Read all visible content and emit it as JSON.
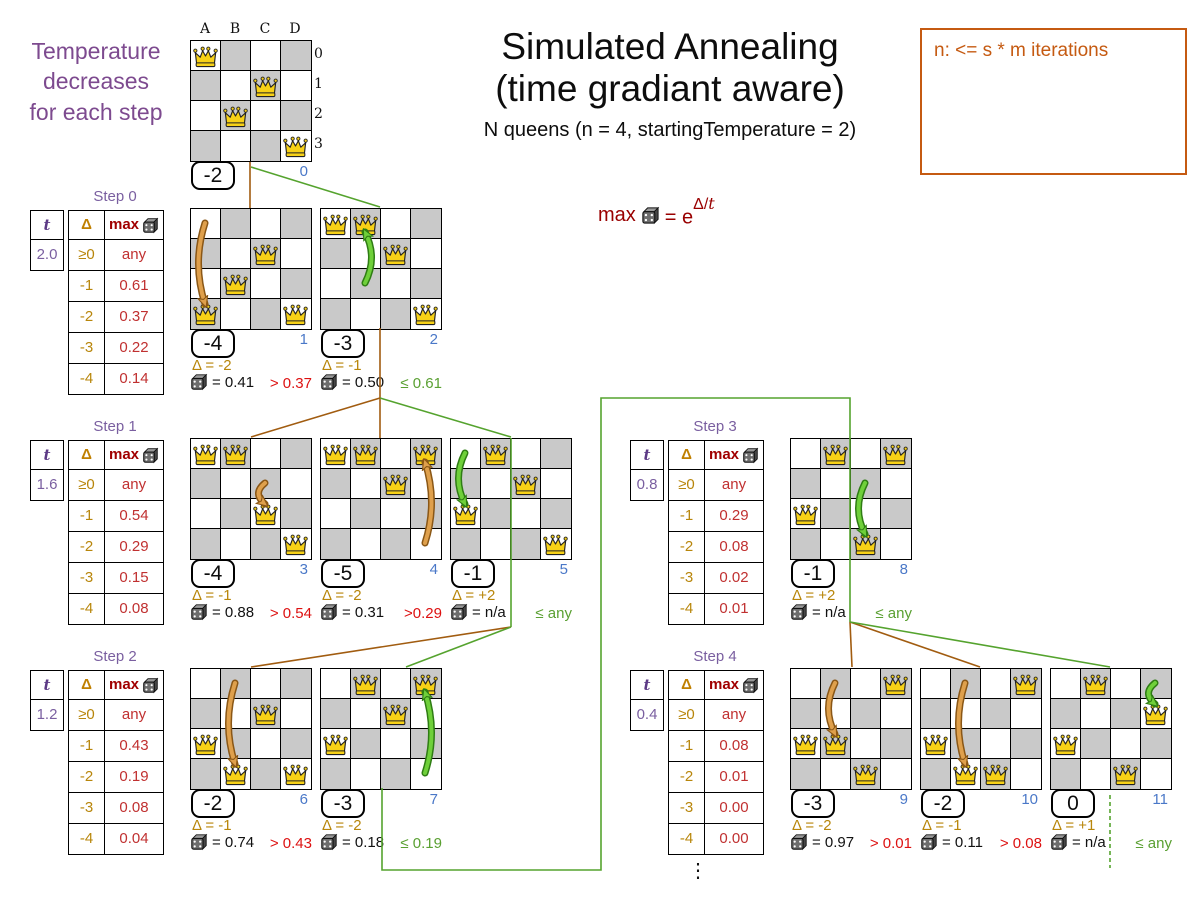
{
  "meta": {
    "title_line1": "Simulated Annealing",
    "title_line2": "(time gradiant aware)",
    "subtitle": "N queens (n = 4, startingTemperature = 2)"
  },
  "temperature_note": {
    "lines": [
      "Temperature",
      "decreases",
      "for each step"
    ]
  },
  "note_box": {
    "text": "n: <= s * m iterations"
  },
  "formula": {
    "prefix": "max",
    "equals": "= e",
    "exponent_delta": "Δ/",
    "exponent_t": "t"
  },
  "board_labels": {
    "columns": [
      "A",
      "B",
      "C",
      "D"
    ],
    "rows": [
      "0",
      "1",
      "2",
      "3"
    ]
  },
  "table_header": {
    "t": "t",
    "delta": "Δ",
    "max": "max"
  },
  "steps": [
    {
      "label": "Step 0",
      "t": "2.0",
      "rows": [
        {
          "delta": "≥0",
          "max": "any"
        },
        {
          "delta": "-1",
          "max": "0.61"
        },
        {
          "delta": "-2",
          "max": "0.37"
        },
        {
          "delta": "-3",
          "max": "0.22"
        },
        {
          "delta": "-4",
          "max": "0.14"
        }
      ]
    },
    {
      "label": "Step 1",
      "t": "1.6",
      "rows": [
        {
          "delta": "≥0",
          "max": "any"
        },
        {
          "delta": "-1",
          "max": "0.54"
        },
        {
          "delta": "-2",
          "max": "0.29"
        },
        {
          "delta": "-3",
          "max": "0.15"
        },
        {
          "delta": "-4",
          "max": "0.08"
        }
      ]
    },
    {
      "label": "Step 2",
      "t": "1.2",
      "rows": [
        {
          "delta": "≥0",
          "max": "any"
        },
        {
          "delta": "-1",
          "max": "0.43"
        },
        {
          "delta": "-2",
          "max": "0.19"
        },
        {
          "delta": "-3",
          "max": "0.08"
        },
        {
          "delta": "-4",
          "max": "0.04"
        }
      ]
    },
    {
      "label": "Step 3",
      "t": "0.8",
      "rows": [
        {
          "delta": "≥0",
          "max": "any"
        },
        {
          "delta": "-1",
          "max": "0.29"
        },
        {
          "delta": "-2",
          "max": "0.08"
        },
        {
          "delta": "-3",
          "max": "0.02"
        },
        {
          "delta": "-4",
          "max": "0.01"
        }
      ]
    },
    {
      "label": "Step 4",
      "t": "0.4",
      "rows": [
        {
          "delta": "≥0",
          "max": "any"
        },
        {
          "delta": "-1",
          "max": "0.08"
        },
        {
          "delta": "-2",
          "max": "0.01"
        },
        {
          "delta": "-3",
          "max": "0.00"
        },
        {
          "delta": "-4",
          "max": "0.00"
        }
      ]
    }
  ],
  "boards": [
    {
      "score": "-2",
      "index": "0",
      "queens": [
        [
          0,
          0
        ],
        [
          2,
          1
        ],
        [
          1,
          2
        ],
        [
          3,
          3
        ]
      ]
    },
    {
      "score": "-4",
      "index": "1",
      "queens": [
        [
          2,
          1
        ],
        [
          1,
          2
        ],
        [
          0,
          3
        ],
        [
          3,
          3
        ]
      ],
      "move": {
        "color": "orange",
        "from": [
          0,
          0
        ],
        "to": [
          0,
          3
        ]
      },
      "delta": "Δ = -2",
      "dice": "= 0.41",
      "threshold": "> 0.37",
      "accept": false
    },
    {
      "score": "-3",
      "index": "2",
      "queens": [
        [
          0,
          0
        ],
        [
          1,
          0
        ],
        [
          2,
          1
        ],
        [
          3,
          3
        ]
      ],
      "move": {
        "color": "green",
        "from": [
          1,
          2
        ],
        "to": [
          1,
          0
        ]
      },
      "delta": "Δ = -1",
      "dice": "= 0.50",
      "threshold": "≤ 0.61",
      "accept": true
    },
    {
      "score": "-4",
      "index": "3",
      "queens": [
        [
          0,
          0
        ],
        [
          1,
          0
        ],
        [
          2,
          2
        ],
        [
          3,
          3
        ]
      ],
      "move": {
        "color": "orange",
        "from": [
          2,
          1
        ],
        "to": [
          2,
          2
        ]
      },
      "delta": "Δ = -1",
      "dice": "= 0.88",
      "threshold": "> 0.54",
      "accept": false
    },
    {
      "score": "-5",
      "index": "4",
      "queens": [
        [
          0,
          0
        ],
        [
          1,
          0
        ],
        [
          2,
          1
        ],
        [
          3,
          0
        ]
      ],
      "move": {
        "color": "orange",
        "from": [
          3,
          3
        ],
        "to": [
          3,
          0
        ]
      },
      "delta": "Δ = -2",
      "dice": "= 0.31",
      "threshold": ">0.29",
      "accept": false
    },
    {
      "score": "-1",
      "index": "5",
      "queens": [
        [
          1,
          0
        ],
        [
          2,
          1
        ],
        [
          0,
          2
        ],
        [
          3,
          3
        ]
      ],
      "move": {
        "color": "green",
        "from": [
          0,
          0
        ],
        "to": [
          0,
          2
        ]
      },
      "delta": "Δ = +2",
      "dice": "= n/a",
      "threshold": "≤ any",
      "accept": true
    },
    {
      "score": "-2",
      "index": "6",
      "queens": [
        [
          2,
          1
        ],
        [
          0,
          2
        ],
        [
          1,
          3
        ],
        [
          3,
          3
        ]
      ],
      "move": {
        "color": "orange",
        "from": [
          1,
          0
        ],
        "to": [
          1,
          3
        ]
      },
      "delta": "Δ = -1",
      "dice": "= 0.74",
      "threshold": "> 0.43",
      "accept": false
    },
    {
      "score": "-3",
      "index": "7",
      "queens": [
        [
          1,
          0
        ],
        [
          2,
          1
        ],
        [
          0,
          2
        ],
        [
          3,
          0
        ]
      ],
      "move": {
        "color": "green",
        "from": [
          3,
          3
        ],
        "to": [
          3,
          0
        ]
      },
      "delta": "Δ = -2",
      "dice": "= 0.18",
      "threshold": "≤ 0.19",
      "accept": true
    },
    {
      "score": "-1",
      "index": "8",
      "queens": [
        [
          1,
          0
        ],
        [
          3,
          0
        ],
        [
          0,
          2
        ],
        [
          2,
          3
        ]
      ],
      "move": {
        "color": "green",
        "from": [
          2,
          1
        ],
        "to": [
          2,
          3
        ]
      },
      "delta": "Δ = +2",
      "dice": "= n/a",
      "threshold": "≤ any",
      "accept": true
    },
    {
      "score": "-3",
      "index": "9",
      "queens": [
        [
          3,
          0
        ],
        [
          0,
          2
        ],
        [
          1,
          2
        ],
        [
          2,
          3
        ]
      ],
      "move": {
        "color": "orange",
        "from": [
          1,
          0
        ],
        "to": [
          1,
          2
        ]
      },
      "delta": "Δ = -2",
      "dice": "= 0.97",
      "threshold": "> 0.01",
      "accept": false
    },
    {
      "score": "-2",
      "index": "10",
      "queens": [
        [
          3,
          0
        ],
        [
          0,
          2
        ],
        [
          1,
          3
        ],
        [
          2,
          3
        ]
      ],
      "move": {
        "color": "orange",
        "from": [
          1,
          0
        ],
        "to": [
          1,
          3
        ]
      },
      "delta": "Δ = -1",
      "dice": "= 0.11",
      "threshold": "> 0.08",
      "accept": false
    },
    {
      "score": "0",
      "index": "11",
      "queens": [
        [
          1,
          0
        ],
        [
          3,
          1
        ],
        [
          0,
          2
        ],
        [
          2,
          3
        ]
      ],
      "move": {
        "color": "green",
        "from": [
          3,
          0
        ],
        "to": [
          3,
          1
        ]
      },
      "delta": "Δ = +1",
      "dice": "= n/a",
      "threshold": "≤ any",
      "accept": true
    }
  ],
  "ellipsis": "⋮",
  "colors": {
    "purple": "#7a5fa0",
    "gold": "#b8860b",
    "dark_red": "#990000",
    "value_red": "#c03030",
    "reject_red": "#dd1111",
    "accept_green": "#5aa032",
    "index_blue": "#4a78c8",
    "orange_note": "#c55a11",
    "wire_orange": "#a15c10",
    "wire_green": "#55a32e",
    "board_gray": "#c9c9c9",
    "queen_gold": "#f7d117"
  }
}
